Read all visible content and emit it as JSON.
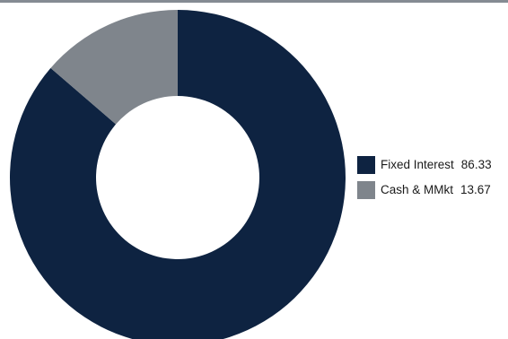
{
  "chart_data": {
    "type": "pie",
    "style": "donut",
    "categories": [
      "Fixed Interest",
      "Cash & MMkt"
    ],
    "values": [
      86.33,
      13.67
    ],
    "value_labels": [
      "86.33",
      "13.67"
    ],
    "colors": [
      "#0e2341",
      "#7f858c"
    ],
    "legend_position": "right"
  },
  "colors": {
    "top_rule": "#858b93",
    "background": "#ffffff"
  }
}
